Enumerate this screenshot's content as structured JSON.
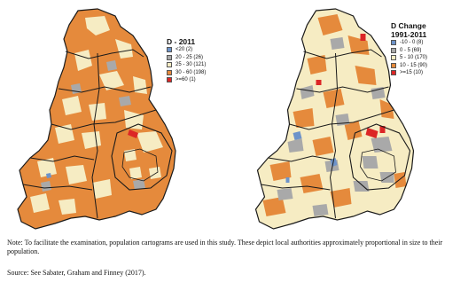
{
  "maps": [
    {
      "id": "left",
      "legend": {
        "title": "D - 2011",
        "items": [
          {
            "label": "<20 (2)",
            "color": "#6d93c9"
          },
          {
            "label": "20 - 25 (26)",
            "color": "#a9a9a9"
          },
          {
            "label": "25 - 30 (121)",
            "color": "#f6ecc3"
          },
          {
            "label": "30 - 60 (198)",
            "color": "#e58a3c"
          },
          {
            "label": ">=60 (1)",
            "color": "#dc2626"
          }
        ]
      }
    },
    {
      "id": "right",
      "legend": {
        "title_line1": "D Change",
        "title_line2": "1991-2011",
        "items": [
          {
            "label": "-10 - 0 (8)",
            "color": "#6d93c9"
          },
          {
            "label": "0 - 5 (69)",
            "color": "#a9a9a9"
          },
          {
            "label": "5 - 10 (170)",
            "color": "#f6ecc3"
          },
          {
            "label": "10 - 15 (90)",
            "color": "#e58a3c"
          },
          {
            "label": ">=15 (10)",
            "color": "#dc2626"
          }
        ]
      }
    }
  ],
  "note": "Note: To facilitate the examination, population cartograms are used in this study. These depict local authorities approximately proportional in size to their population.",
  "source": "Source: See Sabater, Graham and Finney (2017)."
}
